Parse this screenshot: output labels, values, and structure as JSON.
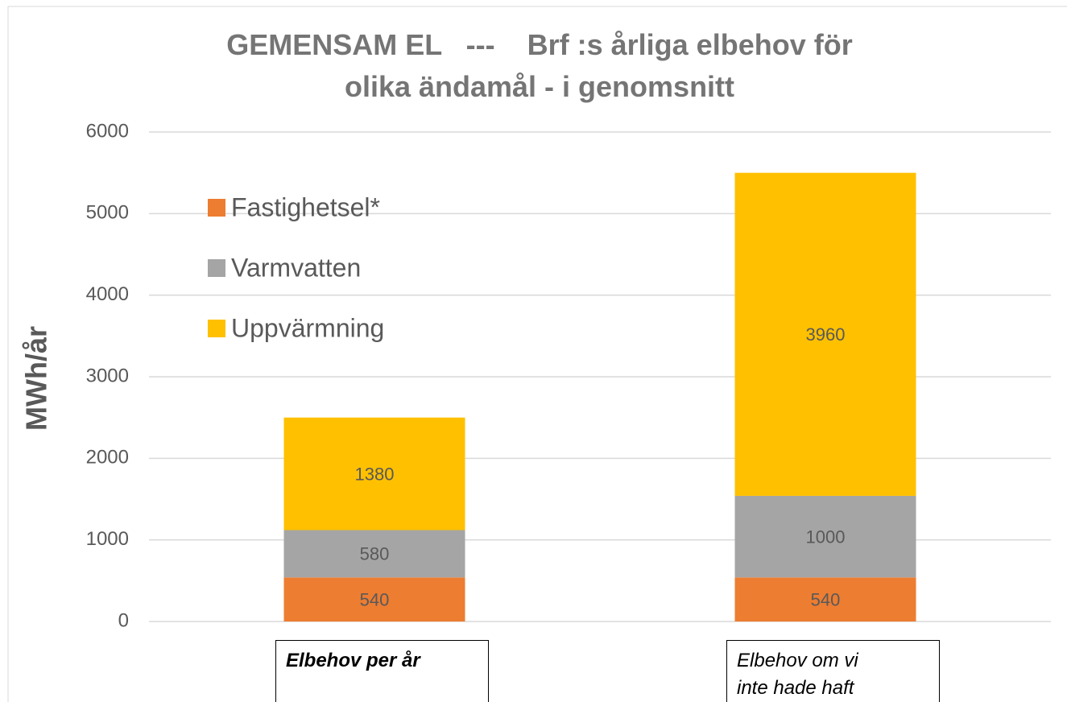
{
  "chart_data": {
    "type": "stacked_bar",
    "title": "GEMENSAM EL   ---    Brf :s årliga elbehov för olika ändamål - i genomsnitt",
    "y_label": "MWh/år",
    "categories": [
      "Elbehov per år",
      "Elbehov om vi inte hade haft"
    ],
    "series": [
      {
        "name": "Fastighetsel*",
        "color": "#ed7d31",
        "values": [
          540,
          540
        ]
      },
      {
        "name": "Varmvatten",
        "color": "#a5a5a5",
        "values": [
          580,
          1000
        ]
      },
      {
        "name": "Uppvärmning",
        "color": "#ffc000",
        "values": [
          1380,
          3960
        ]
      }
    ],
    "ylim": [
      0,
      6000
    ],
    "yticks": [
      0,
      1000,
      2000,
      3000,
      4000,
      5000,
      6000
    ],
    "grid": true,
    "legend": "top-left"
  }
}
